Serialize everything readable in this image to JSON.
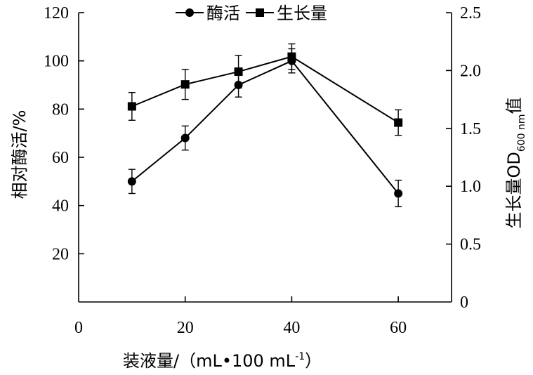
{
  "chart_data": {
    "type": "line",
    "x": [
      10,
      20,
      30,
      40,
      60
    ],
    "xlabel_prefix": "装液量/（mL•100 mL",
    "xlabel_sup": "-1",
    "xlabel_suffix": "）",
    "xlim": [
      0,
      70
    ],
    "x_ticks": [
      "0",
      "20",
      "40",
      "60"
    ],
    "x_tick_values": [
      0,
      20,
      40,
      60
    ],
    "ylabel_left": "相对酶活/%",
    "ylim_left": [
      0,
      120
    ],
    "y_left_ticks": [
      "20",
      "40",
      "60",
      "80",
      "100",
      "120"
    ],
    "y_left_tick_values": [
      20,
      40,
      60,
      80,
      100,
      120
    ],
    "ylabel_right_prefix": "生长量OD",
    "ylabel_right_sub": "600 nm",
    "ylabel_right_suffix": "值",
    "ylim_right": [
      0,
      2.5
    ],
    "y_right_ticks": [
      "0",
      "0.5",
      "1.0",
      "1.5",
      "2.0",
      "2.5"
    ],
    "y_right_tick_values": [
      0,
      0.5,
      1.0,
      1.5,
      2.0,
      2.5
    ],
    "series": [
      {
        "name": "酶活",
        "axis": "left",
        "marker": "circle",
        "values": [
          50,
          68,
          90,
          100,
          45
        ],
        "errors": [
          5,
          5,
          5,
          5,
          5.5
        ]
      },
      {
        "name": "生长量",
        "axis": "right",
        "marker": "square",
        "values": [
          1.69,
          1.88,
          1.99,
          2.12,
          1.55
        ],
        "errors": [
          0.12,
          0.13,
          0.14,
          0.11,
          0.11
        ]
      }
    ],
    "legend_position": "top-center",
    "grid": false,
    "line_color": "#000000"
  }
}
